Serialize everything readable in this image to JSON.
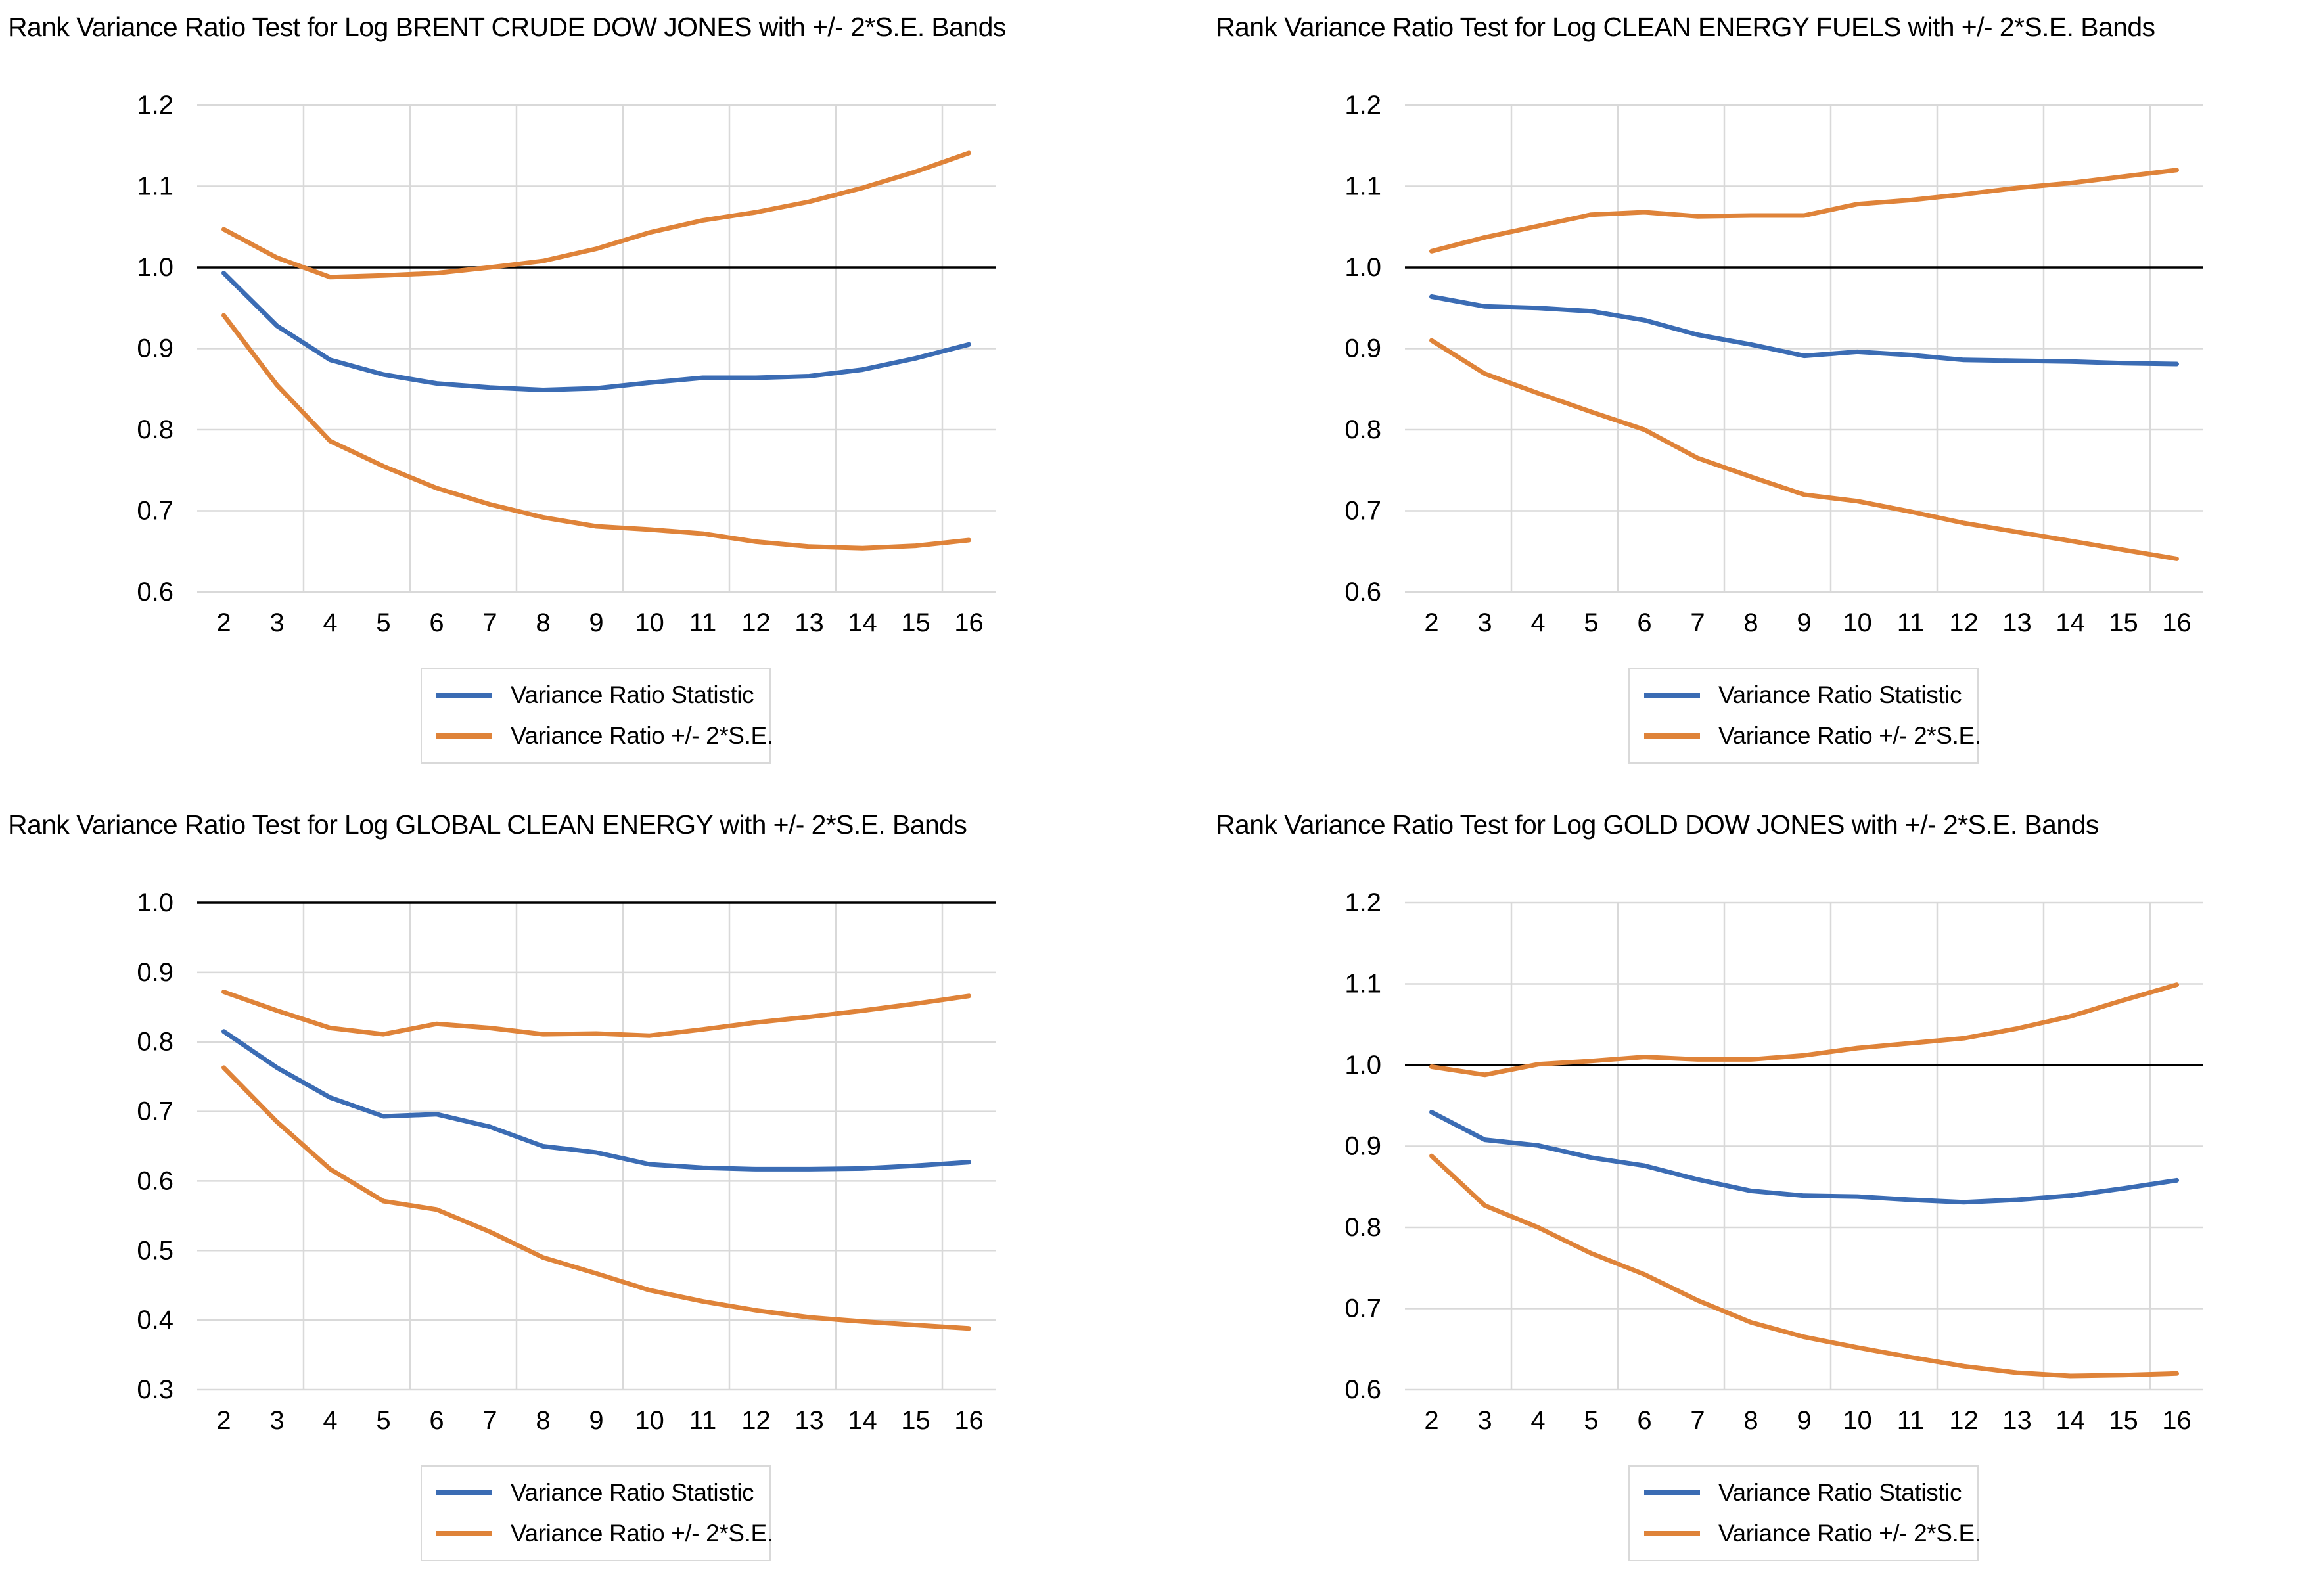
{
  "page": {
    "background": "#FFFFFF"
  },
  "colors": {
    "statistic": "#3B6CB4",
    "band": "#DF8339",
    "refline": "#000000",
    "grid": "#D9D9D9",
    "text": "#000000",
    "legend_border": "#D9D9D9"
  },
  "legend": {
    "items": [
      {
        "label": "Variance Ratio Statistic",
        "series": "statistic"
      },
      {
        "label": "Variance Ratio +/- 2*S.E.",
        "series": "band"
      }
    ]
  },
  "chart_data": [
    {
      "type": "line",
      "title": "Rank Variance Ratio Test for Log BRENT CRUDE DOW JONES with +/- 2*S.E. Bands",
      "x": [
        2,
        3,
        4,
        5,
        6,
        7,
        8,
        9,
        10,
        11,
        12,
        13,
        14,
        15,
        16
      ],
      "xlabel": "",
      "ylabel": "",
      "ylim": [
        0.6,
        1.2
      ],
      "yticks": [
        0.6,
        0.7,
        0.8,
        0.9,
        1.0,
        1.1,
        1.2
      ],
      "refline": 1.0,
      "grid": true,
      "legend_position": "bottom",
      "series": [
        {
          "name": "Variance Ratio Statistic",
          "color_key": "statistic",
          "values": [
            0.993,
            0.928,
            0.886,
            0.868,
            0.857,
            0.852,
            0.849,
            0.851,
            0.858,
            0.864,
            0.864,
            0.866,
            0.874,
            0.888,
            0.905
          ]
        },
        {
          "name": "Variance Ratio + 2*S.E.",
          "color_key": "band",
          "values": [
            1.047,
            1.012,
            0.988,
            0.99,
            0.993,
            1.0,
            1.008,
            1.023,
            1.043,
            1.058,
            1.068,
            1.081,
            1.098,
            1.118,
            1.141
          ]
        },
        {
          "name": "Variance Ratio - 2*S.E.",
          "color_key": "band",
          "values": [
            0.941,
            0.855,
            0.786,
            0.755,
            0.728,
            0.708,
            0.692,
            0.681,
            0.677,
            0.672,
            0.662,
            0.656,
            0.654,
            0.657,
            0.664
          ]
        }
      ]
    },
    {
      "type": "line",
      "title": "Rank Variance Ratio Test for Log CLEAN ENERGY FUELS with +/- 2*S.E. Bands",
      "x": [
        2,
        3,
        4,
        5,
        6,
        7,
        8,
        9,
        10,
        11,
        12,
        13,
        14,
        15,
        16
      ],
      "xlabel": "",
      "ylabel": "",
      "ylim": [
        0.6,
        1.2
      ],
      "yticks": [
        0.6,
        0.7,
        0.8,
        0.9,
        1.0,
        1.1,
        1.2
      ],
      "refline": 1.0,
      "grid": true,
      "legend_position": "bottom",
      "series": [
        {
          "name": "Variance Ratio Statistic",
          "color_key": "statistic",
          "values": [
            0.964,
            0.952,
            0.95,
            0.946,
            0.935,
            0.917,
            0.905,
            0.891,
            0.896,
            0.892,
            0.886,
            0.885,
            0.884,
            0.882,
            0.881
          ]
        },
        {
          "name": "Variance Ratio + 2*S.E.",
          "color_key": "band",
          "values": [
            1.02,
            1.037,
            1.051,
            1.065,
            1.068,
            1.063,
            1.064,
            1.064,
            1.078,
            1.083,
            1.09,
            1.098,
            1.104,
            1.112,
            1.12
          ]
        },
        {
          "name": "Variance Ratio - 2*S.E.",
          "color_key": "band",
          "values": [
            0.91,
            0.869,
            0.845,
            0.822,
            0.8,
            0.765,
            0.742,
            0.72,
            0.712,
            0.699,
            0.685,
            0.674,
            0.663,
            0.652,
            0.641
          ]
        }
      ]
    },
    {
      "type": "line",
      "title": "Rank Variance Ratio Test for Log GLOBAL CLEAN ENERGY with +/- 2*S.E. Bands",
      "x": [
        2,
        3,
        4,
        5,
        6,
        7,
        8,
        9,
        10,
        11,
        12,
        13,
        14,
        15,
        16
      ],
      "xlabel": "",
      "ylabel": "",
      "ylim": [
        0.3,
        1.0
      ],
      "yticks": [
        0.3,
        0.4,
        0.5,
        0.6,
        0.7,
        0.8,
        0.9,
        1.0
      ],
      "refline": 1.0,
      "grid": true,
      "legend_position": "bottom",
      "series": [
        {
          "name": "Variance Ratio Statistic",
          "color_key": "statistic",
          "values": [
            0.815,
            0.763,
            0.72,
            0.693,
            0.696,
            0.678,
            0.65,
            0.641,
            0.624,
            0.619,
            0.617,
            0.617,
            0.618,
            0.622,
            0.627
          ]
        },
        {
          "name": "Variance Ratio + 2*S.E.",
          "color_key": "band",
          "values": [
            0.872,
            0.845,
            0.82,
            0.811,
            0.826,
            0.82,
            0.811,
            0.812,
            0.809,
            0.818,
            0.828,
            0.836,
            0.845,
            0.855,
            0.866
          ]
        },
        {
          "name": "Variance Ratio - 2*S.E.",
          "color_key": "band",
          "values": [
            0.763,
            0.685,
            0.617,
            0.571,
            0.559,
            0.527,
            0.49,
            0.467,
            0.443,
            0.427,
            0.414,
            0.404,
            0.398,
            0.393,
            0.388
          ]
        }
      ]
    },
    {
      "type": "line",
      "title": "Rank Variance Ratio Test for Log GOLD DOW JONES with +/- 2*S.E. Bands",
      "x": [
        2,
        3,
        4,
        5,
        6,
        7,
        8,
        9,
        10,
        11,
        12,
        13,
        14,
        15,
        16
      ],
      "xlabel": "",
      "ylabel": "",
      "ylim": [
        0.6,
        1.2
      ],
      "yticks": [
        0.6,
        0.7,
        0.8,
        0.9,
        1.0,
        1.1,
        1.2
      ],
      "refline": 1.0,
      "grid": true,
      "legend_position": "bottom",
      "series": [
        {
          "name": "Variance Ratio Statistic",
          "color_key": "statistic",
          "values": [
            0.942,
            0.908,
            0.901,
            0.886,
            0.876,
            0.859,
            0.845,
            0.839,
            0.838,
            0.834,
            0.831,
            0.834,
            0.839,
            0.848,
            0.858
          ]
        },
        {
          "name": "Variance Ratio + 2*S.E.",
          "color_key": "band",
          "values": [
            0.998,
            0.988,
            1.001,
            1.005,
            1.01,
            1.007,
            1.007,
            1.012,
            1.021,
            1.027,
            1.033,
            1.045,
            1.06,
            1.08,
            1.099
          ]
        },
        {
          "name": "Variance Ratio - 2*S.E.",
          "color_key": "band",
          "values": [
            0.888,
            0.827,
            0.8,
            0.768,
            0.742,
            0.71,
            0.683,
            0.665,
            0.652,
            0.64,
            0.629,
            0.621,
            0.617,
            0.618,
            0.62
          ]
        }
      ]
    }
  ]
}
